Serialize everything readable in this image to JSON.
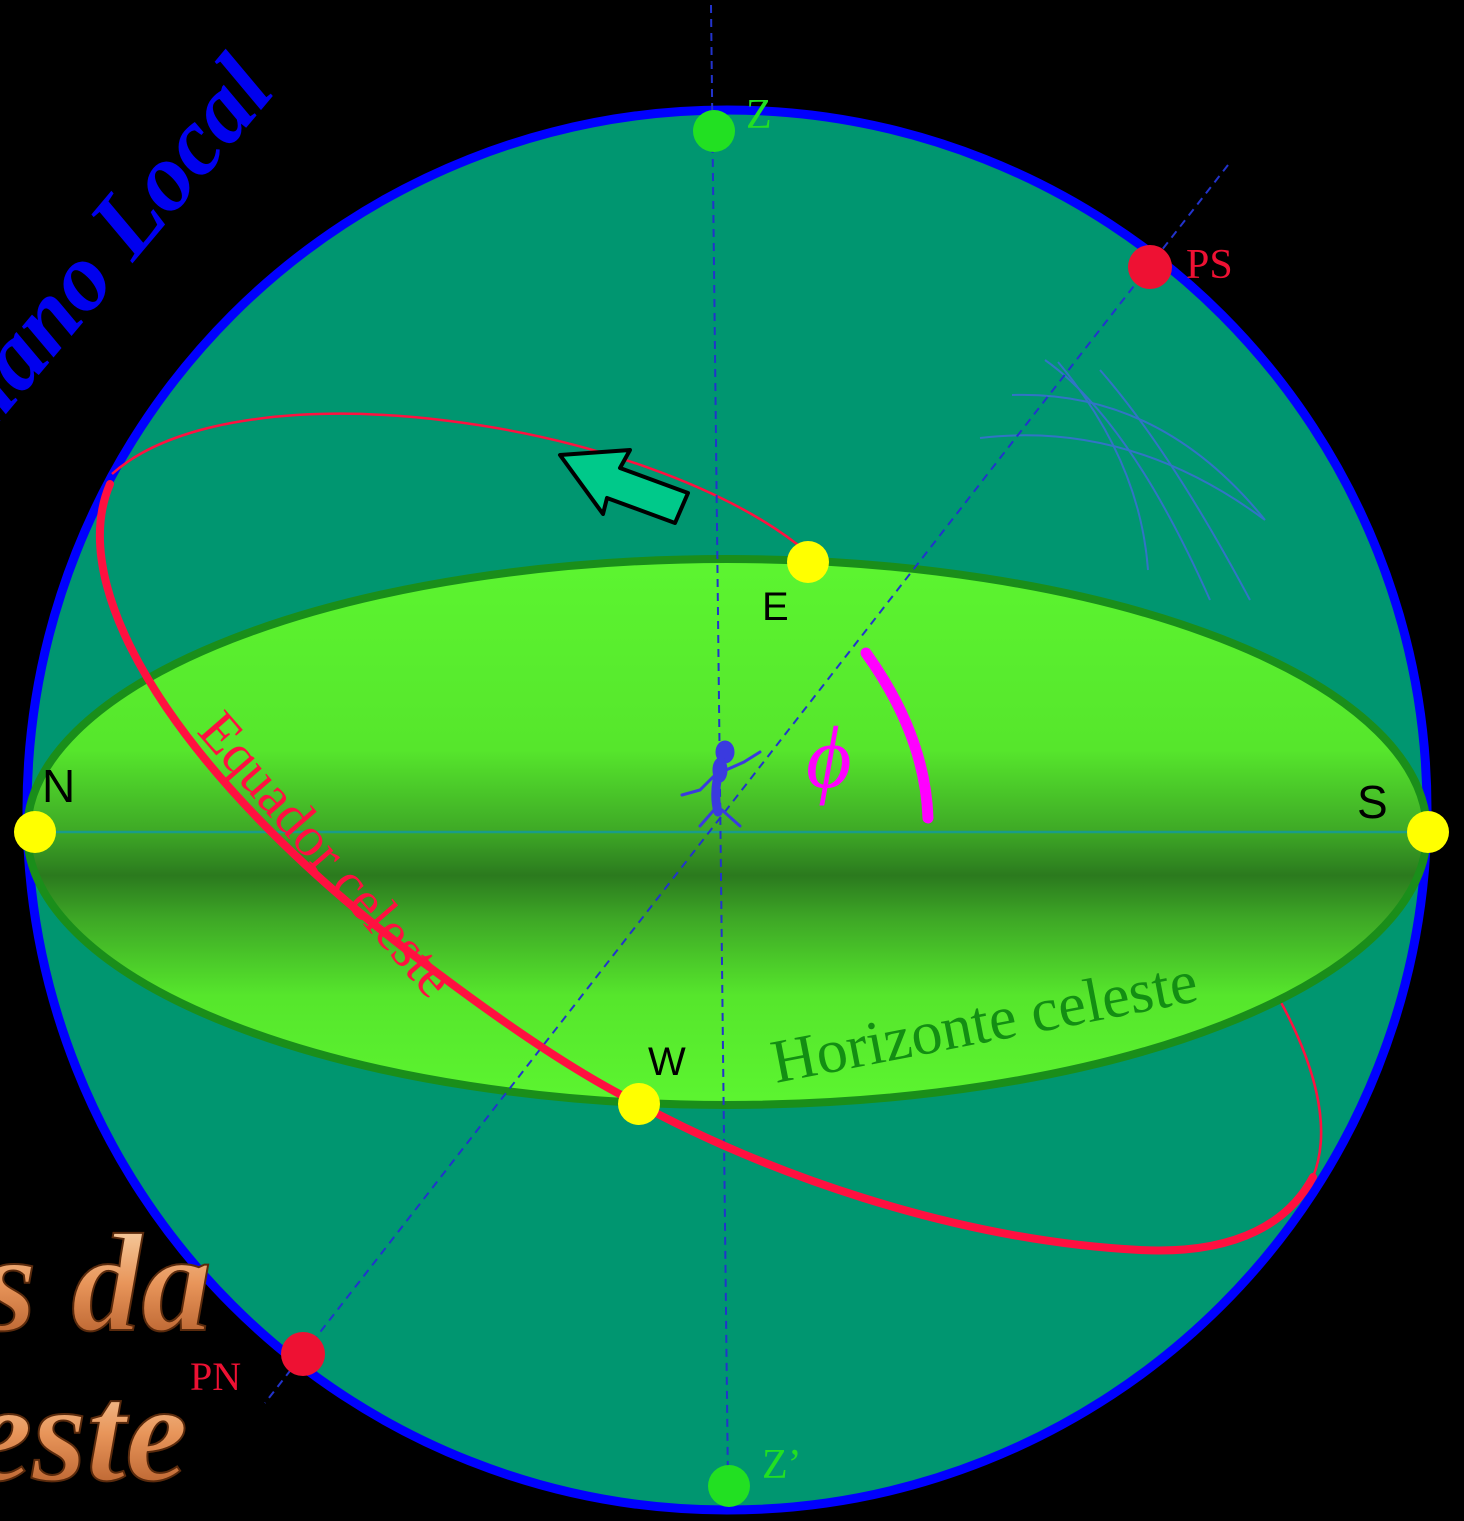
{
  "title_overlay": {
    "meridiano": "Meridiano Local",
    "line1": "s da",
    "line2": "este"
  },
  "points": {
    "zenith": "Z",
    "nadir": "Z’",
    "south_pole": "PS",
    "north_pole": "PN",
    "north": "N",
    "south": "S",
    "east": "E",
    "west": "W"
  },
  "labels": {
    "equator": "Equador celeste",
    "horizon": "Horizonte celeste",
    "latitude_symbol": "ϕ"
  },
  "colors": {
    "background": "#000000",
    "sphere_fill": "#009670",
    "sphere_outline": "#0000ff",
    "horizon_fill": "#5cf530",
    "horizon_shadow": "#2e7d22",
    "equator": "#ff1040",
    "cardinal_points": "#ffff00",
    "zenith_points": "#22e022",
    "pole_points": "#ee1133",
    "axis_lines": "#2233cc",
    "latitude_arc": "#ff00ff",
    "arrow": "#00c98a",
    "meridian_text": "#0000ee",
    "title_text": "#e8955a"
  }
}
